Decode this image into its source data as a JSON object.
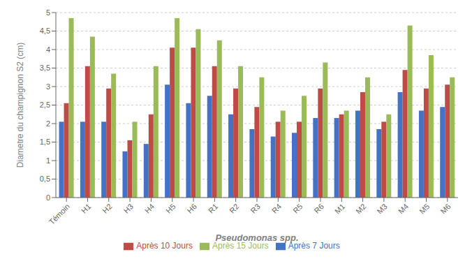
{
  "chart_data": {
    "type": "bar",
    "xlabel": "Pseudomonas spp.",
    "ylabel": "Diametre du champignon S2 (cm)",
    "categories": [
      "Témoin",
      "H1",
      "H2",
      "H3",
      "H4",
      "H5",
      "H6",
      "R1",
      "R2",
      "R3",
      "R4",
      "R5",
      "R6",
      "M1",
      "M2",
      "M3",
      "M4",
      "M5",
      "M6"
    ],
    "series": [
      {
        "name": "Après 7 Jours",
        "color": "#4472C4",
        "values": [
          2.05,
          2.05,
          2.05,
          1.25,
          1.45,
          3.05,
          2.55,
          2.75,
          2.25,
          1.85,
          1.65,
          1.75,
          2.15,
          2.15,
          2.35,
          1.85,
          2.85,
          2.35,
          2.45
        ]
      },
      {
        "name": "Après 10 Jours",
        "color": "#BE4B48",
        "values": [
          2.55,
          3.55,
          2.95,
          1.55,
          2.25,
          4.05,
          4.05,
          3.55,
          2.95,
          2.45,
          2.05,
          2.05,
          2.95,
          2.25,
          2.85,
          2.05,
          3.45,
          2.95,
          3.05
        ]
      },
      {
        "name": "Après 15 Jours",
        "color": "#9BBB59",
        "values": [
          4.85,
          4.35,
          3.35,
          2.05,
          3.55,
          4.85,
          4.55,
          4.25,
          3.55,
          3.25,
          2.35,
          2.75,
          3.65,
          2.35,
          3.25,
          2.25,
          4.65,
          3.85,
          3.25
        ]
      }
    ],
    "ylim": [
      0,
      5
    ],
    "yticks": [
      0,
      {
        "value": 0.5,
        "label": "0,5"
      },
      1,
      {
        "value": 1.5,
        "label": "1,5"
      },
      2,
      {
        "value": 2.5,
        "label": "2,5"
      },
      3,
      {
        "value": 3.5,
        "label": "3,5"
      },
      4,
      {
        "value": 4.5,
        "label": "4,5"
      },
      5
    ],
    "grid": true,
    "legend": "bottom"
  }
}
